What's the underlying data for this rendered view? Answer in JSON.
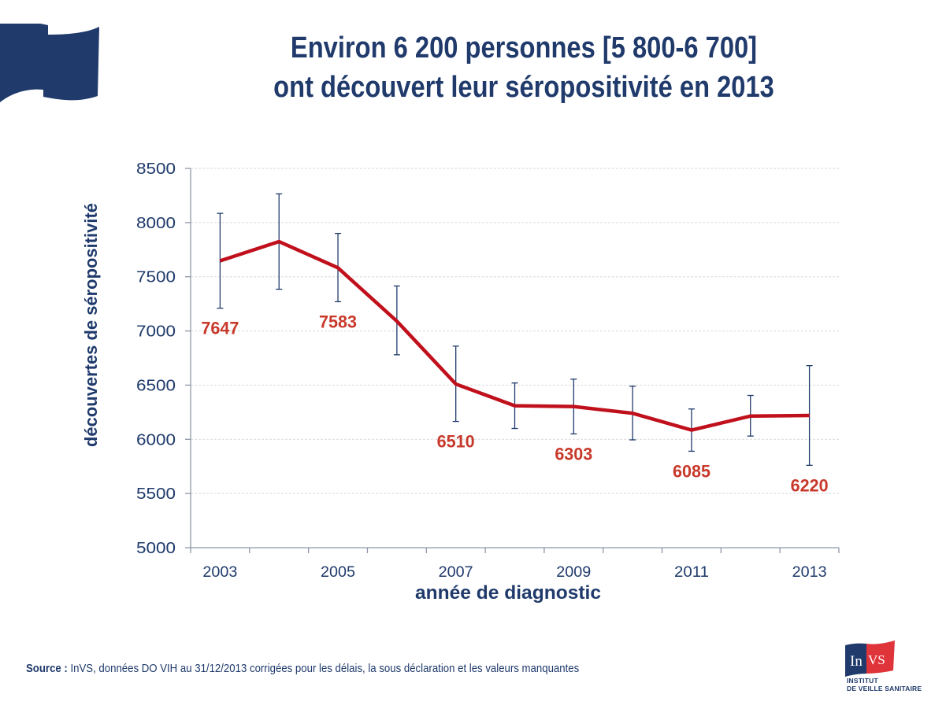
{
  "slide": {
    "title_line1": "Environ 6 200 personnes [5 800-6 700]",
    "title_line2": "ont découvert  leur séropositivité en 2013",
    "source_label": "Source :",
    "source_text": " InVS, données DO VIH au 31/12/2013 corrigées pour les délais, la sous déclaration et les valeurs manquantes",
    "logo": {
      "mark": "InVS",
      "line1": "INSTITUT",
      "line2": "DE VEILLE SANITAIRE",
      "colors": {
        "blue": "#1f3a6b",
        "red": "#e0343b"
      }
    },
    "decor_icon": "flag-icon"
  },
  "chart_data": {
    "type": "line",
    "title": "",
    "xlabel": "année de diagnostic",
    "ylabel": "découvertes de séropositivité",
    "ylim": [
      5000,
      8500
    ],
    "yticks": [
      5000,
      5500,
      6000,
      6500,
      7000,
      7500,
      8000,
      8500
    ],
    "ytick_labels": [
      "5000",
      "5500",
      "6000",
      "6500",
      "7000",
      "7500",
      "8000",
      "8500"
    ],
    "x": [
      2003,
      2004,
      2005,
      2006,
      2007,
      2008,
      2009,
      2010,
      2011,
      2012,
      2013
    ],
    "xtick_labels": [
      "2003",
      "",
      "2005",
      "",
      "2007",
      "",
      "2009",
      "",
      "2011",
      "",
      "2013"
    ],
    "grid": "horizontal dashed",
    "legend": "none",
    "series": [
      {
        "name": "découvertes de séropositivité",
        "color": "#c0101c",
        "values": [
          7647,
          7825,
          7583,
          7090,
          6510,
          6310,
          6303,
          6240,
          6085,
          6215,
          6220
        ],
        "error_upper": [
          8085,
          8265,
          7900,
          7415,
          6860,
          6520,
          6555,
          6490,
          6280,
          6405,
          6680
        ],
        "error_lower": [
          7210,
          7385,
          7270,
          6780,
          6165,
          6100,
          6050,
          5995,
          5890,
          6030,
          5760
        ],
        "error_color": "#1f3a6b"
      }
    ],
    "data_labels": [
      {
        "x": 2003,
        "text": "7647"
      },
      {
        "x": 2005,
        "text": "7583"
      },
      {
        "x": 2007,
        "text": "6510"
      },
      {
        "x": 2009,
        "text": "6303"
      },
      {
        "x": 2011,
        "text": "6085"
      },
      {
        "x": 2013,
        "text": "6220"
      }
    ],
    "data_label_color": "#c8392b"
  }
}
